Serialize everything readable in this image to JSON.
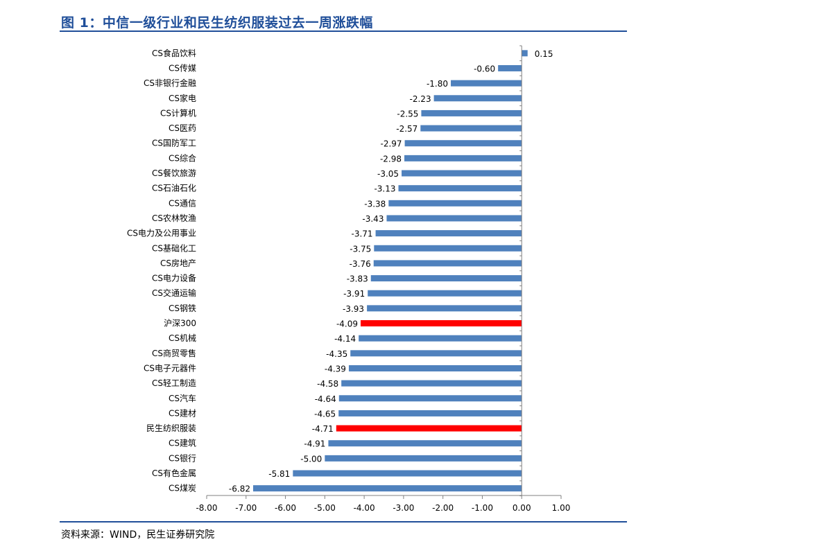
{
  "figure": {
    "title": "图 1：中信一级行业和民生纺织服装过去一周涨跌幅",
    "source": "资料来源：WIND，民生证券研究院"
  },
  "colors": {
    "bar_default": "#4f81bd",
    "bar_highlight": "#ff0000",
    "accent": "#1f4e99"
  },
  "chart_data": {
    "type": "bar",
    "orientation": "horizontal",
    "categories": [
      "CS食品饮料",
      "CS传媒",
      "CS非银行金融",
      "CS家电",
      "CS计算机",
      "CS医药",
      "CS国防军工",
      "CS综合",
      "CS餐饮旅游",
      "CS石油石化",
      "CS通信",
      "CS农林牧渔",
      "CS电力及公用事业",
      "CS基础化工",
      "CS房地产",
      "CS电力设备",
      "CS交通运输",
      "CS钢铁",
      "沪深300",
      "CS机械",
      "CS商贸零售",
      "CS电子元器件",
      "CS轻工制造",
      "CS汽车",
      "CS建材",
      "民生纺织服装",
      "CS建筑",
      "CS银行",
      "CS有色金属",
      "CS煤炭"
    ],
    "values": [
      0.15,
      -0.6,
      -1.8,
      -2.23,
      -2.55,
      -2.57,
      -2.97,
      -2.98,
      -3.05,
      -3.13,
      -3.38,
      -3.43,
      -3.71,
      -3.75,
      -3.76,
      -3.83,
      -3.91,
      -3.93,
      -4.09,
      -4.14,
      -4.35,
      -4.39,
      -4.58,
      -4.64,
      -4.65,
      -4.71,
      -4.91,
      -5.0,
      -5.81,
      -6.82
    ],
    "value_labels": [
      "0.15",
      "-0.60",
      "-1.80",
      "-2.23",
      "-2.55",
      "-2.57",
      "-2.97",
      "-2.98",
      "-3.05",
      "-3.13",
      "-3.38",
      "-3.43",
      "-3.71",
      "-3.75",
      "-3.76",
      "-3.83",
      "-3.91",
      "-3.93",
      "-4.09",
      "-4.14",
      "-4.35",
      "-4.39",
      "-4.58",
      "-4.64",
      "-4.65",
      "-4.71",
      "-4.91",
      "-5.00",
      "-5.81",
      "-6.82"
    ],
    "highlighted": [
      "沪深300",
      "民生纺织服装"
    ],
    "xlim": [
      -8,
      1
    ],
    "xticks": [
      -8,
      -7,
      -6,
      -5,
      -4,
      -3,
      -2,
      -1,
      0,
      1
    ],
    "xtick_labels": [
      "-8.00",
      "-7.00",
      "-6.00",
      "-5.00",
      "-4.00",
      "-3.00",
      "-2.00",
      "-1.00",
      "0.00",
      "1.00"
    ],
    "grid": false,
    "legend": "none"
  }
}
